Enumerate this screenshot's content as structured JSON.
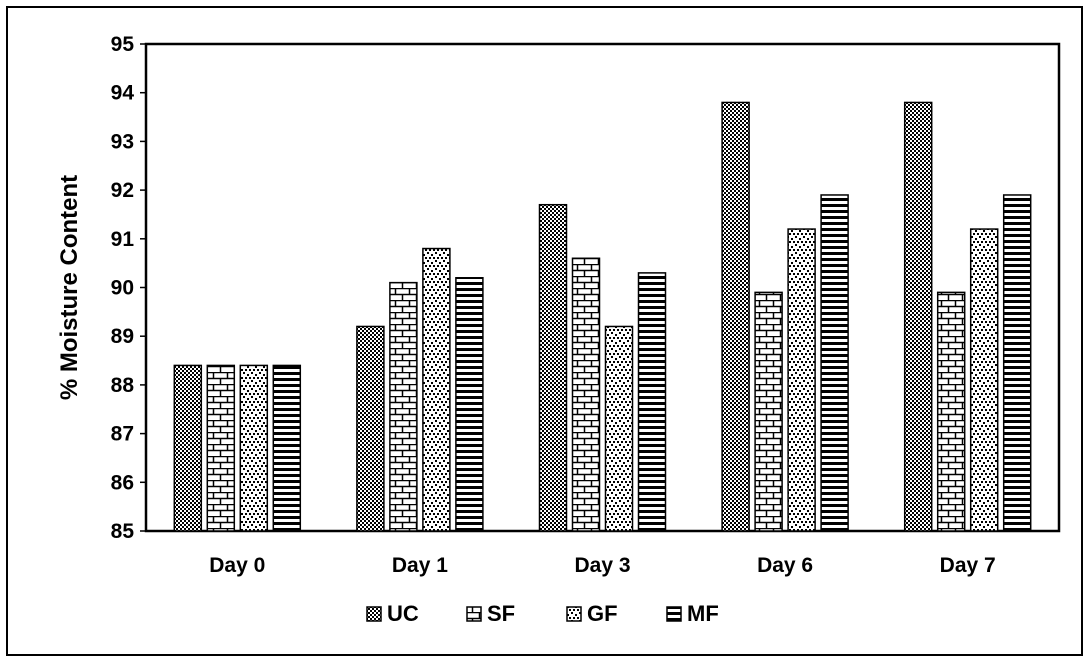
{
  "chart_data": {
    "type": "bar",
    "title": "",
    "xlabel": "",
    "ylabel": "% Moisture Content",
    "ylim": [
      85,
      95
    ],
    "yticks": [
      85,
      86,
      87,
      88,
      89,
      90,
      91,
      92,
      93,
      94,
      95
    ],
    "categories": [
      "Day 0",
      "Day 1",
      "Day 3",
      "Day 6",
      "Day 7"
    ],
    "series": [
      {
        "name": "UC",
        "values": [
          88.4,
          89.2,
          91.7,
          93.8,
          93.8
        ],
        "pattern": "checker"
      },
      {
        "name": "SF",
        "values": [
          88.4,
          90.1,
          90.6,
          89.9,
          89.9
        ],
        "pattern": "brick"
      },
      {
        "name": "GF",
        "values": [
          88.4,
          90.8,
          89.2,
          91.2,
          91.2
        ],
        "pattern": "dots"
      },
      {
        "name": "MF",
        "values": [
          88.4,
          90.2,
          90.3,
          91.9,
          91.9
        ],
        "pattern": "hstripe"
      }
    ],
    "grid": false,
    "legend_position": "bottom",
    "colors": {
      "stroke": "#000000",
      "fill": "#ffffff"
    }
  }
}
